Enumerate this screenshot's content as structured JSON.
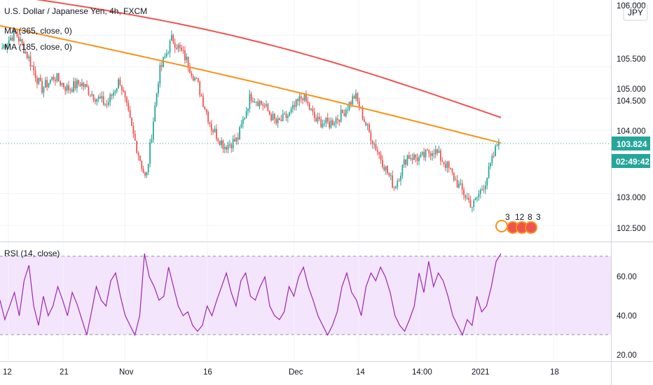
{
  "header": {
    "title": "U.S. Dollar / Japanese Yen, 4h, FXCM",
    "ma_slow": "MA (365, close, 0)",
    "ma_fast": "MA (185, close, 0)",
    "rsi": "RSI (14, close)",
    "currency": "JPY"
  },
  "price_axis": {
    "ticks": [
      "106.000",
      "105.500",
      "105.000",
      "104.500",
      "104.000",
      "103.000",
      "102.500"
    ],
    "last_price": "103.824",
    "countdown": "02:49:42"
  },
  "rsi_axis": {
    "ticks": [
      "60.00",
      "40.00",
      "20.00"
    ]
  },
  "time_axis": {
    "ticks": [
      "12",
      "21",
      "Nov",
      "16",
      "Dec",
      "14",
      "14:00",
      "2021",
      "18"
    ]
  },
  "events": {
    "labels": [
      "3",
      "12",
      "8",
      "3"
    ]
  },
  "colors": {
    "up": "#26a69a",
    "down": "#ef5350",
    "ma_slow": "#ef5350",
    "ma_fast": "#f7931a",
    "rsi_line": "#9c27b0",
    "rsi_band": "#f3e5fc",
    "last_price_bg": "#26a69a"
  },
  "chart_data": [
    {
      "type": "candlestick",
      "title": "U.S. Dollar / Japanese Yen, 4h, FXCM",
      "x": [
        "12",
        "21",
        "Nov",
        "16",
        "Dec",
        "14",
        "14:00",
        "2021",
        "18"
      ],
      "ylim": [
        102.3,
        106.0
      ],
      "close_path": [
        [
          "12",
          105.3
        ],
        [
          "15",
          105.55
        ],
        [
          "18",
          105.15
        ],
        [
          "21",
          104.65
        ],
        [
          "23",
          104.85
        ],
        [
          "26",
          104.65
        ],
        [
          "28",
          104.75
        ],
        [
          "30",
          104.55
        ],
        [
          "Nov",
          104.4
        ],
        [
          "3",
          104.8
        ],
        [
          "5",
          103.95
        ],
        [
          "6",
          103.2
        ],
        [
          "9",
          104.9
        ],
        [
          "11",
          105.45
        ],
        [
          "13",
          105.15
        ],
        [
          "16",
          104.7
        ],
        [
          "18",
          104.05
        ],
        [
          "20",
          103.75
        ],
        [
          "23",
          103.85
        ],
        [
          "24",
          104.55
        ],
        [
          "26",
          104.4
        ],
        [
          "28",
          104.1
        ],
        [
          "Dec",
          104.25
        ],
        [
          "3",
          104.55
        ],
        [
          "5",
          104.15
        ],
        [
          "8",
          104.1
        ],
        [
          "10",
          104.25
        ],
        [
          "12",
          104.55
        ],
        [
          "14",
          104.0
        ],
        [
          "16",
          103.55
        ],
        [
          "18",
          103.1
        ],
        [
          "22",
          103.6
        ],
        [
          "24",
          103.55
        ],
        [
          "26",
          103.7
        ],
        [
          "28",
          103.45
        ],
        [
          "30",
          103.1
        ],
        [
          "2021",
          102.8
        ],
        [
          "4",
          103.2
        ],
        [
          "5",
          103.85
        ]
      ],
      "last": 103.824,
      "series": [
        {
          "name": "MA (365, close, 0)",
          "start": 106.15,
          "end": 104.2
        },
        {
          "name": "MA (185, close, 0)",
          "start": 105.65,
          "end": 103.8
        }
      ]
    },
    {
      "type": "line",
      "title": "RSI (14, close)",
      "ylim": [
        18,
        75
      ],
      "levels": [
        70,
        30
      ],
      "values": [
        48,
        38,
        45,
        52,
        40,
        58,
        66,
        45,
        35,
        50,
        40,
        45,
        55,
        48,
        40,
        52,
        46,
        38,
        30,
        42,
        55,
        48,
        45,
        58,
        62,
        50,
        40,
        35,
        30,
        40,
        72,
        60,
        55,
        48,
        50,
        65,
        55,
        45,
        40,
        42,
        35,
        32,
        35,
        45,
        40,
        48,
        55,
        62,
        52,
        45,
        58,
        62,
        50,
        48,
        55,
        60,
        45,
        40,
        38,
        42,
        55,
        50,
        60,
        65,
        55,
        48,
        40,
        35,
        30,
        35,
        42,
        55,
        62,
        52,
        48,
        40,
        55,
        62,
        58,
        65,
        60,
        52,
        40,
        35,
        32,
        38,
        45,
        62,
        52,
        68,
        55,
        62,
        58,
        50,
        40,
        35,
        30,
        38,
        35,
        50,
        42,
        45,
        55,
        68,
        72
      ]
    }
  ]
}
